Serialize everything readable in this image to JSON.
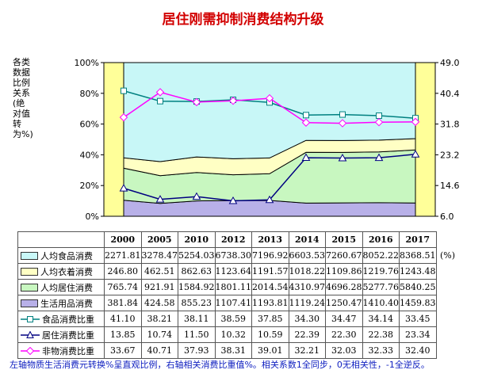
{
  "title": "居住刚需抑制消费结构升级",
  "ylabel_left": "各类数据比例关系(绝对值转为%)",
  "caption": "左轴物质生活消费元转换%呈直观比例，右轴相关消费比重值%。相关系数1全同步，0无相关性，-1全逆反。",
  "unit": "(%)",
  "colors": {
    "plot_bg": "#c8f7f7",
    "side_band": "#ffff99",
    "food_fill": "#c8f7f7",
    "clothing_fill": "#ffffc4",
    "housing_fill": "#c8f7c0",
    "goods_fill": "#b8b0e8",
    "food_line": "#008080",
    "housing_line": "#000080",
    "nonmaterial_line": "#ff00ff",
    "caption": "#1020c0",
    "title": "#d20000"
  },
  "chart_data": {
    "type": "area",
    "x": [
      "2000",
      "2005",
      "2010",
      "2012",
      "2013",
      "2014",
      "2015",
      "2016",
      "2017"
    ],
    "y_left": {
      "ticks": [
        "0%",
        "20%",
        "40%",
        "60%",
        "80%",
        "100%"
      ],
      "ylim": [
        0,
        100
      ]
    },
    "y_right": {
      "ticks": [
        "6.0",
        "14.6",
        "23.2",
        "31.8",
        "40.4",
        "49.0"
      ],
      "ylim": [
        6.0,
        49.0
      ]
    },
    "stacked_series": [
      {
        "name": "人均食品消费",
        "values": [
          2271.81,
          3278.47,
          5254.03,
          6738.3,
          7196.92,
          6603.53,
          7260.67,
          8052.22,
          8368.51
        ]
      },
      {
        "name": "人均衣着消费",
        "values": [
          246.8,
          462.51,
          862.63,
          1123.64,
          1191.57,
          1018.22,
          1109.86,
          1219.76,
          1243.48
        ]
      },
      {
        "name": "人均居住消费",
        "values": [
          765.74,
          921.91,
          1584.92,
          1801.11,
          2014.54,
          4310.97,
          4696.28,
          5277.76,
          5840.25
        ]
      },
      {
        "name": "生活用品消费",
        "values": [
          381.84,
          424.58,
          855.23,
          1107.41,
          1193.81,
          1119.24,
          1250.47,
          1410.4,
          1459.83
        ]
      }
    ],
    "line_series": [
      {
        "name": "食品消费比重",
        "marker": "square",
        "values": [
          41.1,
          38.21,
          38.11,
          38.59,
          37.85,
          34.3,
          34.47,
          34.14,
          33.45
        ]
      },
      {
        "name": "居住消费比重",
        "marker": "triangle",
        "values": [
          13.85,
          10.74,
          11.5,
          10.32,
          10.59,
          22.39,
          22.3,
          22.38,
          23.34
        ]
      },
      {
        "name": "非物消费比重",
        "marker": "diamond",
        "values": [
          33.67,
          40.71,
          37.93,
          38.31,
          39.01,
          32.21,
          32.03,
          32.33,
          32.4
        ]
      }
    ]
  }
}
